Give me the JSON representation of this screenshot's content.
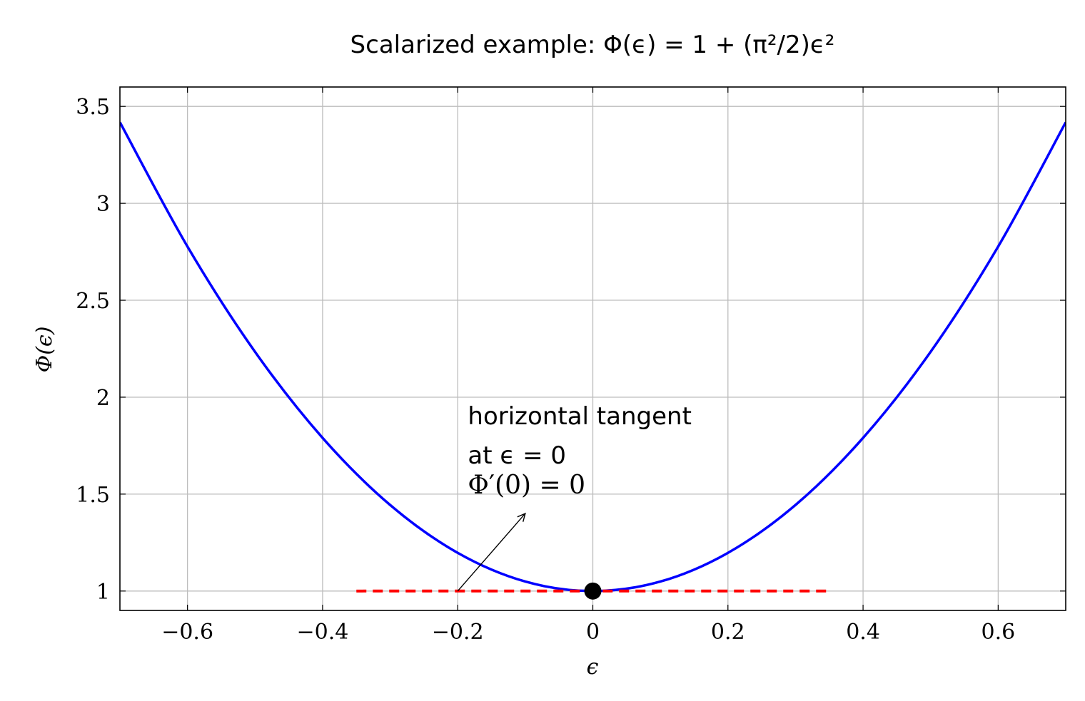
{
  "chart_data": {
    "type": "line",
    "title": "Scalarized example: Φ(ϵ) = 1 + (π²/2)ϵ²",
    "xlabel": "ϵ",
    "ylabel": "Φ(ϵ)",
    "xlim": [
      -0.7,
      0.7
    ],
    "ylim": [
      0.9,
      3.6
    ],
    "xticks": [
      -0.6,
      -0.4,
      -0.2,
      0,
      0.2,
      0.4,
      0.6
    ],
    "xtick_labels": [
      "−0.6",
      "−0.4",
      "−0.2",
      "0",
      "0.2",
      "0.4",
      "0.6"
    ],
    "yticks": [
      1,
      1.5,
      2,
      2.5,
      3,
      3.5
    ],
    "ytick_labels": [
      "1",
      "1.5",
      "2",
      "2.5",
      "3",
      "3.5"
    ],
    "grid": true,
    "series": [
      {
        "color": "#0000ff",
        "style": "solid",
        "x": [
          -0.7,
          -0.6,
          -0.5,
          -0.4,
          -0.3,
          -0.2,
          -0.1,
          0,
          0.1,
          0.2,
          0.3,
          0.4,
          0.5,
          0.6,
          0.7
        ],
        "y": [
          3.418,
          2.777,
          2.234,
          1.79,
          1.444,
          1.197,
          1.049,
          1,
          1.049,
          1.197,
          1.444,
          1.79,
          2.234,
          2.777,
          3.418
        ]
      },
      {
        "color": "#ff0000",
        "style": "dashed",
        "x": [
          -0.35,
          0.35
        ],
        "y": [
          1,
          1
        ]
      }
    ],
    "points": [
      {
        "x": 0,
        "y": 1,
        "color": "#000000"
      }
    ],
    "annotations": [
      {
        "lines": [
          "horizontal tangent",
          "at ϵ = 0",
          "Φ′(0) = 0"
        ],
        "text_x": -0.185,
        "text_y": 1.86,
        "arrow_from": [
          -0.2,
          1.0
        ],
        "arrow_to": [
          -0.1,
          1.4
        ]
      }
    ]
  }
}
